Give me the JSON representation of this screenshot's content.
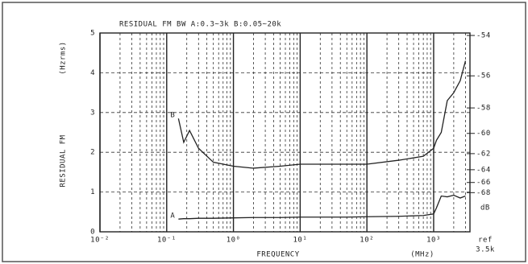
{
  "chart_data": {
    "type": "line",
    "title": "RESIDUAL FM   BW A:0.3~3k B:0.05~20k",
    "y_label": "RESIDUAL FM",
    "y_unit": "(Hzrms)",
    "x_label": "FREQUENCY",
    "x_unit": "(MHz)",
    "y2_label": "dB",
    "reference": {
      "value": 3500,
      "label": [
        "ref",
        "3.5k"
      ]
    },
    "xscale": "log",
    "xlim": [
      0.01,
      3500
    ],
    "xticks": [
      {
        "value": 0.01,
        "label": "10⁻²"
      },
      {
        "value": 0.1,
        "label": "10⁻¹"
      },
      {
        "value": 1,
        "label": "10⁰"
      },
      {
        "value": 10,
        "label": "10¹"
      },
      {
        "value": 100,
        "label": "10²"
      },
      {
        "value": 1000,
        "label": "10³"
      }
    ],
    "ylim": [
      0,
      5
    ],
    "yticks": [
      0,
      1,
      2,
      3,
      4,
      5
    ],
    "y2ticks": [
      -54,
      -56,
      -58,
      -60,
      -62,
      -64,
      -66,
      -68
    ],
    "grid": true,
    "x": [
      0.15,
      0.18,
      0.22,
      0.3,
      0.5,
      1,
      2,
      5,
      10,
      50,
      100,
      300,
      700,
      1000,
      1100,
      1300,
      1600,
      2000,
      2500,
      3000
    ],
    "series": [
      {
        "name": "A",
        "color": "#222222",
        "values": [
          0.32,
          0.33,
          0.33,
          0.34,
          0.34,
          0.35,
          0.36,
          0.36,
          0.37,
          0.37,
          0.38,
          0.39,
          0.41,
          0.45,
          0.6,
          0.9,
          0.88,
          0.92,
          0.85,
          0.9
        ]
      },
      {
        "name": "B",
        "color": "#222222",
        "values": [
          2.85,
          2.25,
          2.55,
          2.1,
          1.75,
          1.65,
          1.6,
          1.65,
          1.7,
          1.7,
          1.7,
          1.8,
          1.9,
          2.1,
          2.3,
          2.5,
          3.3,
          3.5,
          3.8,
          4.3
        ]
      }
    ]
  }
}
